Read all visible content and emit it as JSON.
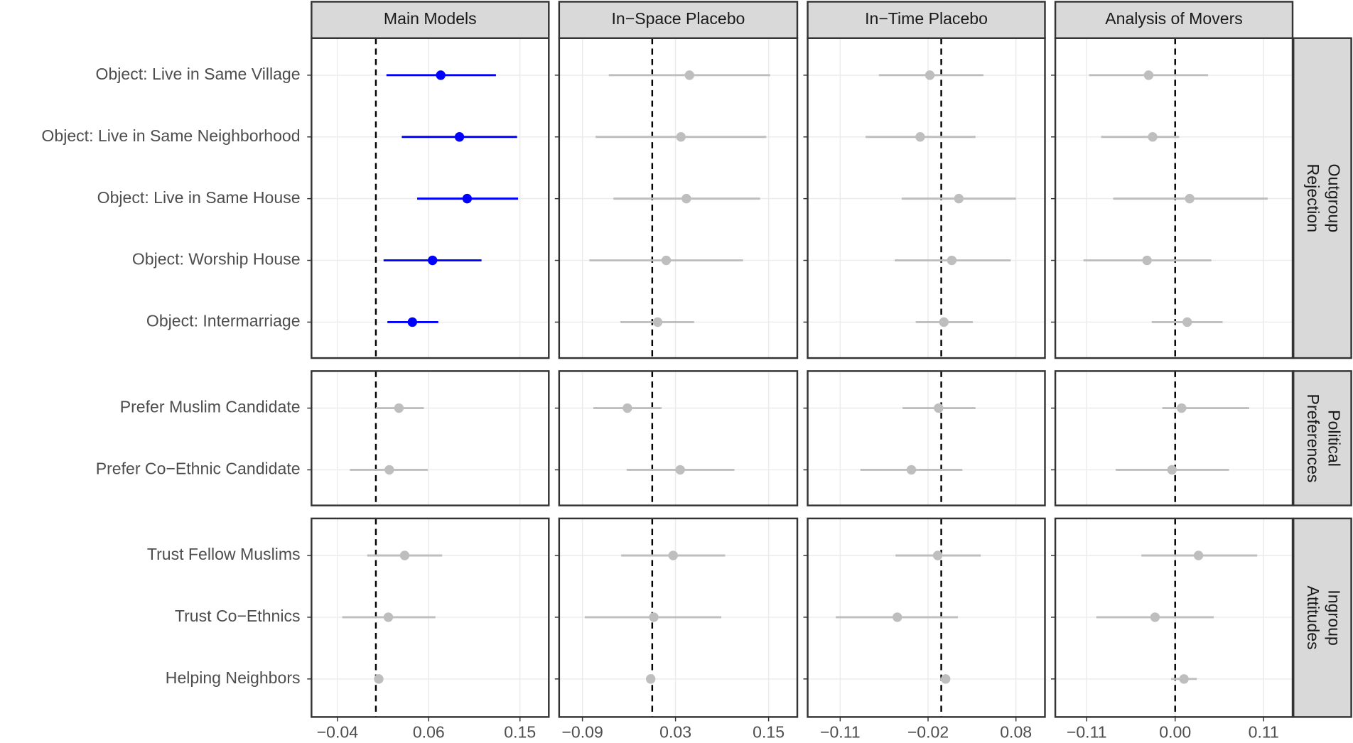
{
  "chart_data": {
    "type": "coefplot",
    "reference_line": 0,
    "groups": [
      {
        "label": [
          "Outgroup",
          "Rejection"
        ],
        "categories": [
          "Object: Live in Same Village",
          "Object: Live in Same Neighborhood",
          "Object: Live in Same House",
          "Object: Worship House",
          "Object: Intermarriage"
        ]
      },
      {
        "label": [
          "Political",
          "Preferences"
        ],
        "categories": [
          "Prefer Muslim Candidate",
          "Prefer Co−Ethnic Candidate"
        ]
      },
      {
        "label": [
          "Ingroup",
          "Attitudes"
        ],
        "categories": [
          "Trust Fellow Muslims",
          "Trust Co−Ethnics",
          "Helping Neighbors"
        ]
      }
    ],
    "panels": [
      {
        "title": "Main Models",
        "xlim": [
          -0.067,
          0.18
        ],
        "xticks": [
          {
            "value": -0.04,
            "label": "−0.04"
          },
          {
            "value": 0.055,
            "label": "0.06"
          },
          0.15
        ],
        "estimates": [
          0.0675,
          0.087,
          0.095,
          0.059,
          0.038,
          0.024,
          0.014,
          0.03,
          0.013,
          0.003
        ],
        "lower": [
          0.011,
          0.027,
          0.043,
          0.008,
          0.012,
          0.0,
          -0.027,
          -0.009,
          -0.035,
          0.0
        ],
        "upper": [
          0.125,
          0.147,
          0.148,
          0.11,
          0.065,
          0.05,
          0.054,
          0.069,
          0.062,
          0.007
        ],
        "colors": [
          "#0000ff",
          "#0000ff",
          "#0000ff",
          "#0000ff",
          "#0000ff",
          "#bebebe",
          "#bebebe",
          "#bebebe",
          "#bebebe",
          "#bebebe"
        ]
      },
      {
        "title": "In−Space Placebo",
        "xlim": [
          -0.12,
          0.187
        ],
        "xticks": [
          {
            "value": -0.09,
            "label": "−0.09"
          },
          0.03,
          0.15
        ],
        "estimates": [
          0.048,
          0.037,
          0.044,
          0.018,
          0.007,
          -0.032,
          0.036,
          0.027,
          0.002,
          -0.002
        ],
        "lower": [
          -0.056,
          -0.073,
          -0.05,
          -0.081,
          -0.041,
          -0.076,
          -0.033,
          -0.04,
          -0.087,
          -0.007
        ],
        "upper": [
          0.152,
          0.147,
          0.139,
          0.117,
          0.054,
          0.012,
          0.106,
          0.094,
          0.089,
          0.002
        ],
        "colors": [
          "#bebebe",
          "#bebebe",
          "#bebebe",
          "#bebebe",
          "#bebebe",
          "#bebebe",
          "#bebebe",
          "#bebebe",
          "#bebebe",
          "#bebebe"
        ]
      },
      {
        "title": "In−Time Placebo",
        "xlim": [
          -0.152,
          0.118
        ],
        "xticks": [
          {
            "value": -0.115,
            "label": "−0.11"
          },
          {
            "value": -0.015,
            "label": "−0.02"
          },
          {
            "value": 0.085,
            "label": "0.08"
          }
        ],
        "estimates": [
          -0.013,
          -0.024,
          0.02,
          0.012,
          0.003,
          -0.003,
          -0.034,
          -0.004,
          -0.05,
          0.005
        ],
        "lower": [
          -0.071,
          -0.086,
          -0.045,
          -0.053,
          -0.029,
          -0.044,
          -0.092,
          -0.052,
          -0.12,
          -0.001
        ],
        "upper": [
          0.048,
          0.039,
          0.085,
          0.079,
          0.036,
          0.039,
          0.024,
          0.045,
          0.019,
          0.01
        ],
        "colors": [
          "#bebebe",
          "#bebebe",
          "#bebebe",
          "#bebebe",
          "#bebebe",
          "#bebebe",
          "#bebebe",
          "#bebebe",
          "#bebebe",
          "#bebebe"
        ]
      },
      {
        "title": "Analysis of Movers",
        "xlim": [
          -0.149,
          0.146
        ],
        "xticks": [
          {
            "value": -0.11,
            "label": "−0.11"
          },
          {
            "value": 0,
            "label": "0.00"
          },
          0.11
        ],
        "estimates": [
          -0.033,
          -0.028,
          0.018,
          -0.035,
          0.015,
          0.008,
          -0.004,
          0.029,
          -0.025,
          0.011
        ],
        "lower": [
          -0.107,
          -0.092,
          -0.077,
          -0.114,
          -0.029,
          -0.016,
          -0.074,
          -0.042,
          -0.098,
          -0.005
        ],
        "upper": [
          0.041,
          0.005,
          0.115,
          0.045,
          0.059,
          0.092,
          0.067,
          0.102,
          0.048,
          0.027
        ],
        "colors": [
          "#bebebe",
          "#bebebe",
          "#bebebe",
          "#bebebe",
          "#bebebe",
          "#bebebe",
          "#bebebe",
          "#bebebe",
          "#bebebe",
          "#bebebe"
        ]
      }
    ]
  }
}
